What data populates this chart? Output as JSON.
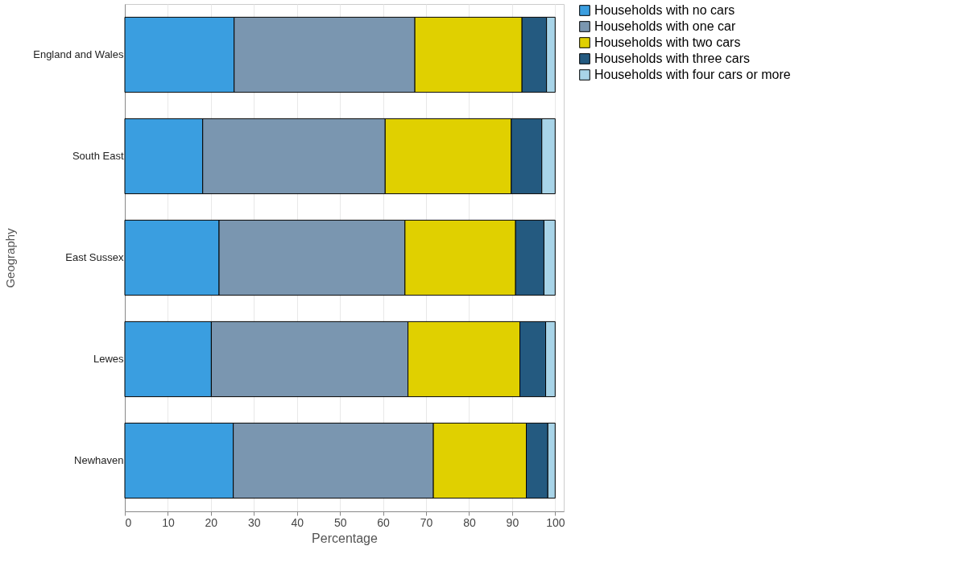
{
  "chart_data": {
    "type": "bar",
    "orientation": "horizontal",
    "stacked": true,
    "xlabel": "Percentage",
    "ylabel": "Geography",
    "categories": [
      "England and Wales",
      "South East",
      "East Sussex",
      "Lewes",
      "Newhaven"
    ],
    "series": [
      {
        "name": "Households with no cars",
        "color": "#3a9ee0",
        "values": [
          25.4,
          18.1,
          21.9,
          20.1,
          25.2
        ]
      },
      {
        "name": "Households with one car",
        "color": "#7a96b0",
        "values": [
          42.0,
          42.4,
          43.2,
          45.7,
          46.5
        ]
      },
      {
        "name": "Households with two cars",
        "color": "#e0d000",
        "values": [
          24.9,
          29.3,
          25.7,
          26.0,
          21.6
        ]
      },
      {
        "name": "Households with three cars",
        "color": "#245a80",
        "values": [
          5.7,
          7.1,
          6.6,
          6.0,
          5.0
        ]
      },
      {
        "name": "Households with four cars or more",
        "color": "#a8d4e8",
        "values": [
          2.0,
          3.1,
          2.6,
          2.2,
          1.7
        ]
      }
    ],
    "xlim": [
      0,
      102
    ],
    "xticks": [
      0,
      10,
      20,
      30,
      40,
      50,
      60,
      70,
      80,
      90,
      100
    ],
    "grid": "x",
    "legend": "right"
  }
}
